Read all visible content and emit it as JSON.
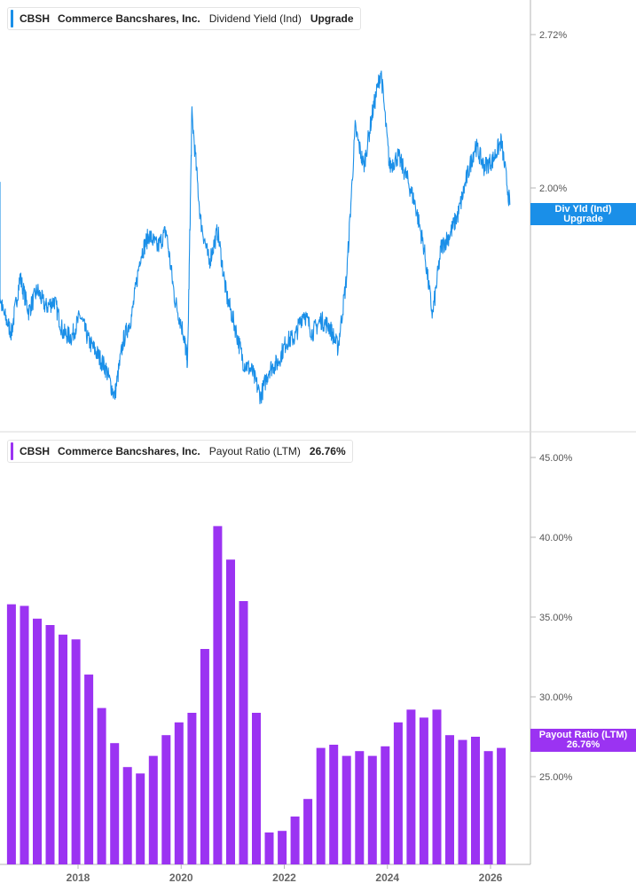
{
  "colors": {
    "line": "#1a8fe8",
    "bars": "#9b33f2",
    "axis": "#b5b5b5",
    "tick_text": "#555555",
    "x_tick_text": "#666666"
  },
  "panels": {
    "top": {
      "ticker": "CBSH",
      "company": "Commerce Bancshares, Inc.",
      "metric": "Dividend Yield (Ind)",
      "tail": "Upgrade",
      "tag_line1": "Div Yld (Ind)",
      "tag_line2": "Upgrade"
    },
    "bottom": {
      "ticker": "CBSH",
      "company": "Commerce Bancshares, Inc.",
      "metric": "Payout Ratio (LTM)",
      "tail": "26.76%",
      "tag_line1": "Payout Ratio (LTM)",
      "tag_line2": "26.76%"
    }
  },
  "chart_data": [
    {
      "type": "line",
      "title": "CBSH Commerce Bancshares, Inc. Dividend Yield (Ind)",
      "y_unit": "%",
      "y_ticks": [
        "2.72%",
        "2.00%"
      ],
      "ylim": [
        0.94,
        2.8
      ],
      "x_ticks": [
        "2018",
        "2020",
        "2022",
        "2024",
        "2026"
      ],
      "series": [
        {
          "name": "Dividend Yield (Ind)",
          "points": [
            [
              "2016-01",
              2.0
            ],
            [
              "2016-03",
              1.75
            ],
            [
              "2016-05",
              1.62
            ],
            [
              "2016-07",
              1.42
            ],
            [
              "2016-09",
              1.32
            ],
            [
              "2016-11",
              1.58
            ],
            [
              "2017-01",
              1.42
            ],
            [
              "2017-03",
              1.52
            ],
            [
              "2017-05",
              1.44
            ],
            [
              "2017-07",
              1.47
            ],
            [
              "2017-09",
              1.32
            ],
            [
              "2017-11",
              1.3
            ],
            [
              "2018-01",
              1.4
            ],
            [
              "2018-03",
              1.28
            ],
            [
              "2018-05",
              1.22
            ],
            [
              "2018-07",
              1.15
            ],
            [
              "2018-09",
              1.02
            ],
            [
              "2018-11",
              1.28
            ],
            [
              "2019-01",
              1.4
            ],
            [
              "2019-03",
              1.68
            ],
            [
              "2019-05",
              1.78
            ],
            [
              "2019-07",
              1.72
            ],
            [
              "2019-09",
              1.8
            ],
            [
              "2019-11",
              1.48
            ],
            [
              "2020-01",
              1.32
            ],
            [
              "2020-02",
              1.18
            ],
            [
              "2020-03",
              2.35
            ],
            [
              "2020-05",
              1.85
            ],
            [
              "2020-07",
              1.65
            ],
            [
              "2020-09",
              1.8
            ],
            [
              "2020-11",
              1.5
            ],
            [
              "2021-01",
              1.35
            ],
            [
              "2021-03",
              1.18
            ],
            [
              "2021-05",
              1.14
            ],
            [
              "2021-07",
              1.02
            ],
            [
              "2021-09",
              1.15
            ],
            [
              "2021-11",
              1.18
            ],
            [
              "2022-01",
              1.28
            ],
            [
              "2022-03",
              1.3
            ],
            [
              "2022-05",
              1.42
            ],
            [
              "2022-07",
              1.32
            ],
            [
              "2022-09",
              1.38
            ],
            [
              "2022-11",
              1.35
            ],
            [
              "2023-01",
              1.25
            ],
            [
              "2023-03",
              1.58
            ],
            [
              "2023-05",
              2.28
            ],
            [
              "2023-07",
              2.1
            ],
            [
              "2023-09",
              2.35
            ],
            [
              "2023-11",
              2.55
            ],
            [
              "2024-01",
              2.1
            ],
            [
              "2024-03",
              2.15
            ],
            [
              "2024-05",
              2.05
            ],
            [
              "2024-07",
              1.92
            ],
            [
              "2024-09",
              1.72
            ],
            [
              "2024-11",
              1.4
            ],
            [
              "2025-01",
              1.72
            ],
            [
              "2025-03",
              1.78
            ],
            [
              "2025-05",
              1.88
            ],
            [
              "2025-07",
              2.05
            ],
            [
              "2025-09",
              2.2
            ],
            [
              "2025-11",
              2.1
            ],
            [
              "2026-01",
              2.13
            ],
            [
              "2026-03",
              2.22
            ],
            [
              "2026-05",
              1.92
            ]
          ]
        }
      ]
    },
    {
      "type": "bar",
      "title": "CBSH Commerce Bancshares, Inc. Payout Ratio (LTM)",
      "y_unit": "%",
      "y_ticks": [
        "45.00%",
        "40.00%",
        "35.00%",
        "30.00%",
        "25.00%"
      ],
      "ylim": [
        20.0,
        45.0
      ],
      "x_ticks": [
        "2018",
        "2020",
        "2022",
        "2024",
        "2026"
      ],
      "series": [
        {
          "name": "Payout Ratio (LTM)",
          "x": [
            "2016-09",
            "2016-12",
            "2017-03",
            "2017-06",
            "2017-09",
            "2017-12",
            "2018-03",
            "2018-06",
            "2018-09",
            "2018-12",
            "2019-03",
            "2019-06",
            "2019-09",
            "2019-12",
            "2020-03",
            "2020-06",
            "2020-09",
            "2020-12",
            "2021-03",
            "2021-06",
            "2021-09",
            "2021-12",
            "2022-03",
            "2022-06",
            "2022-09",
            "2022-12",
            "2023-03",
            "2023-06",
            "2023-09",
            "2023-12",
            "2024-03",
            "2024-06",
            "2024-09",
            "2024-12",
            "2025-03",
            "2025-06",
            "2025-09",
            "2025-12",
            "2026-03"
          ],
          "values": [
            35.8,
            35.7,
            34.9,
            34.5,
            33.9,
            33.6,
            31.4,
            29.3,
            27.1,
            25.6,
            25.2,
            26.3,
            27.6,
            28.4,
            29.0,
            33.0,
            40.7,
            38.6,
            36.0,
            29.0,
            21.5,
            21.6,
            22.5,
            23.6,
            26.8,
            27.0,
            26.3,
            26.6,
            26.3,
            26.9,
            28.4,
            29.2,
            28.7,
            29.2,
            27.6,
            27.3,
            27.5,
            26.6,
            26.8
          ]
        }
      ]
    }
  ]
}
